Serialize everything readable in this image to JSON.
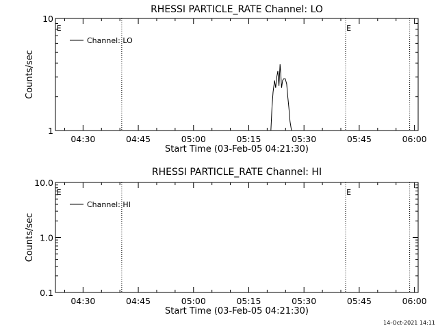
{
  "footer_timestamp": "14-Oct-2021 14:11",
  "chart_data": [
    {
      "type": "line",
      "title": "RHESSI PARTICLE_RATE Channel: LO",
      "xlabel": "Start Time (03-Feb-05 04:21:30)",
      "ylabel": "Counts/sec",
      "yscale": "log",
      "ylim": [
        1,
        10
      ],
      "yticks": [
        1,
        10
      ],
      "ytick_labels": [
        "1",
        "10"
      ],
      "xlim_min": [
        21.5,
        120
      ],
      "xticks_min": [
        29,
        44,
        59,
        74,
        89,
        104,
        119
      ],
      "xtick_labels": [
        "04:30",
        "04:45",
        "05:00",
        "05:15",
        "05:30",
        "05:45",
        "06:00"
      ],
      "event_lines_min": [
        39.5,
        100.3,
        117.7
      ],
      "event_markers": [
        {
          "label": "E",
          "x_min": 21.8
        },
        {
          "label": "E",
          "x_min": 100.5
        }
      ],
      "legend": {
        "position": "top-left",
        "entries": [
          "Channel: LO"
        ]
      },
      "series": [
        {
          "name": "Channel: LO",
          "x": [
            80,
            80.3,
            80.6,
            81.0,
            81.3,
            81.6,
            81.9,
            82.2,
            82.5,
            82.7,
            82.9,
            83.2,
            83.5,
            83.9,
            84.3,
            84.6,
            84.9,
            85.2,
            85.6,
            85.8
          ],
          "y": [
            1,
            1.6,
            2.2,
            2.8,
            2.4,
            3.0,
            3.4,
            2.5,
            3.9,
            3.2,
            2.4,
            2.8,
            2.9,
            2.9,
            2.6,
            2.0,
            1.6,
            1.2,
            1.0,
            1.0
          ]
        }
      ]
    },
    {
      "type": "line",
      "title": "RHESSI PARTICLE_RATE Channel: HI",
      "xlabel": "Start Time (03-Feb-05 04:21:30)",
      "ylabel": "Counts/sec",
      "yscale": "log",
      "ylim": [
        0.1,
        10
      ],
      "yticks": [
        0.1,
        1,
        10
      ],
      "ytick_labels": [
        "0.1",
        "1.0",
        "10.0"
      ],
      "xlim_min": [
        21.5,
        120
      ],
      "xticks_min": [
        29,
        44,
        59,
        74,
        89,
        104,
        119
      ],
      "xtick_labels": [
        "04:30",
        "04:45",
        "05:00",
        "05:15",
        "05:30",
        "05:45",
        "06:00"
      ],
      "event_lines_min": [
        39.5,
        100.3,
        117.7
      ],
      "event_markers": [
        {
          "label": "E",
          "x_min": 21.8
        },
        {
          "label": "E",
          "x_min": 100.5
        }
      ],
      "legend": {
        "position": "top-left",
        "entries": [
          "Channel: HI"
        ]
      },
      "series": [
        {
          "name": "Channel: HI",
          "x": [],
          "y": []
        }
      ]
    }
  ]
}
